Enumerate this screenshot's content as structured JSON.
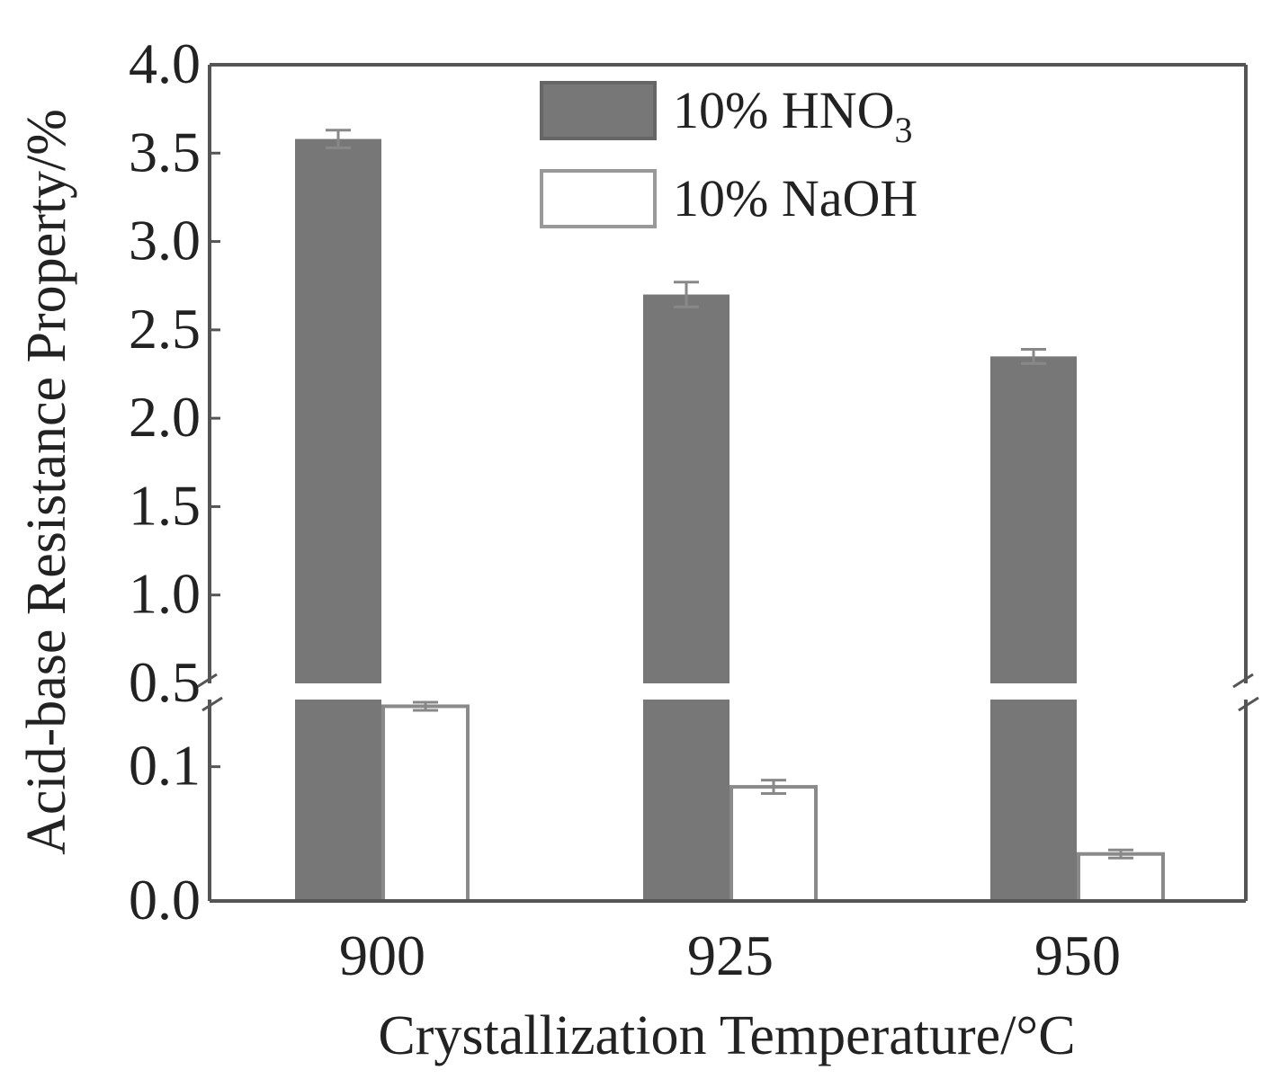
{
  "chart_data": {
    "type": "bar",
    "title": "",
    "xlabel": "Crystallization Temperature/°C",
    "ylabel": "Acid-base Resistance Property/%",
    "categories": [
      "900",
      "925",
      "950"
    ],
    "series": [
      {
        "name": "10% HNO",
        "name_subscript": "3",
        "color": "#777777",
        "values": [
          3.58,
          2.7,
          2.35
        ],
        "errors": [
          0.05,
          0.07,
          0.04
        ]
      },
      {
        "name": "10% NaOH",
        "color": "#ffffff",
        "values": [
          0.145,
          0.085,
          0.035
        ],
        "errors": [
          0.003,
          0.005,
          0.003
        ]
      }
    ],
    "axis_break": {
      "lower_max": 0.15,
      "upper_min": 0.5
    },
    "yticks_lower": [
      "0.0",
      "0.1"
    ],
    "yticks_upper": [
      "0.5",
      "1.0",
      "1.5",
      "2.0",
      "2.5",
      "3.0",
      "3.5",
      "4.0"
    ],
    "ylim_lower": [
      0,
      0.15
    ],
    "ylim_upper": [
      0.5,
      4.0
    ],
    "legend_position": "top-center",
    "grid": false
  }
}
